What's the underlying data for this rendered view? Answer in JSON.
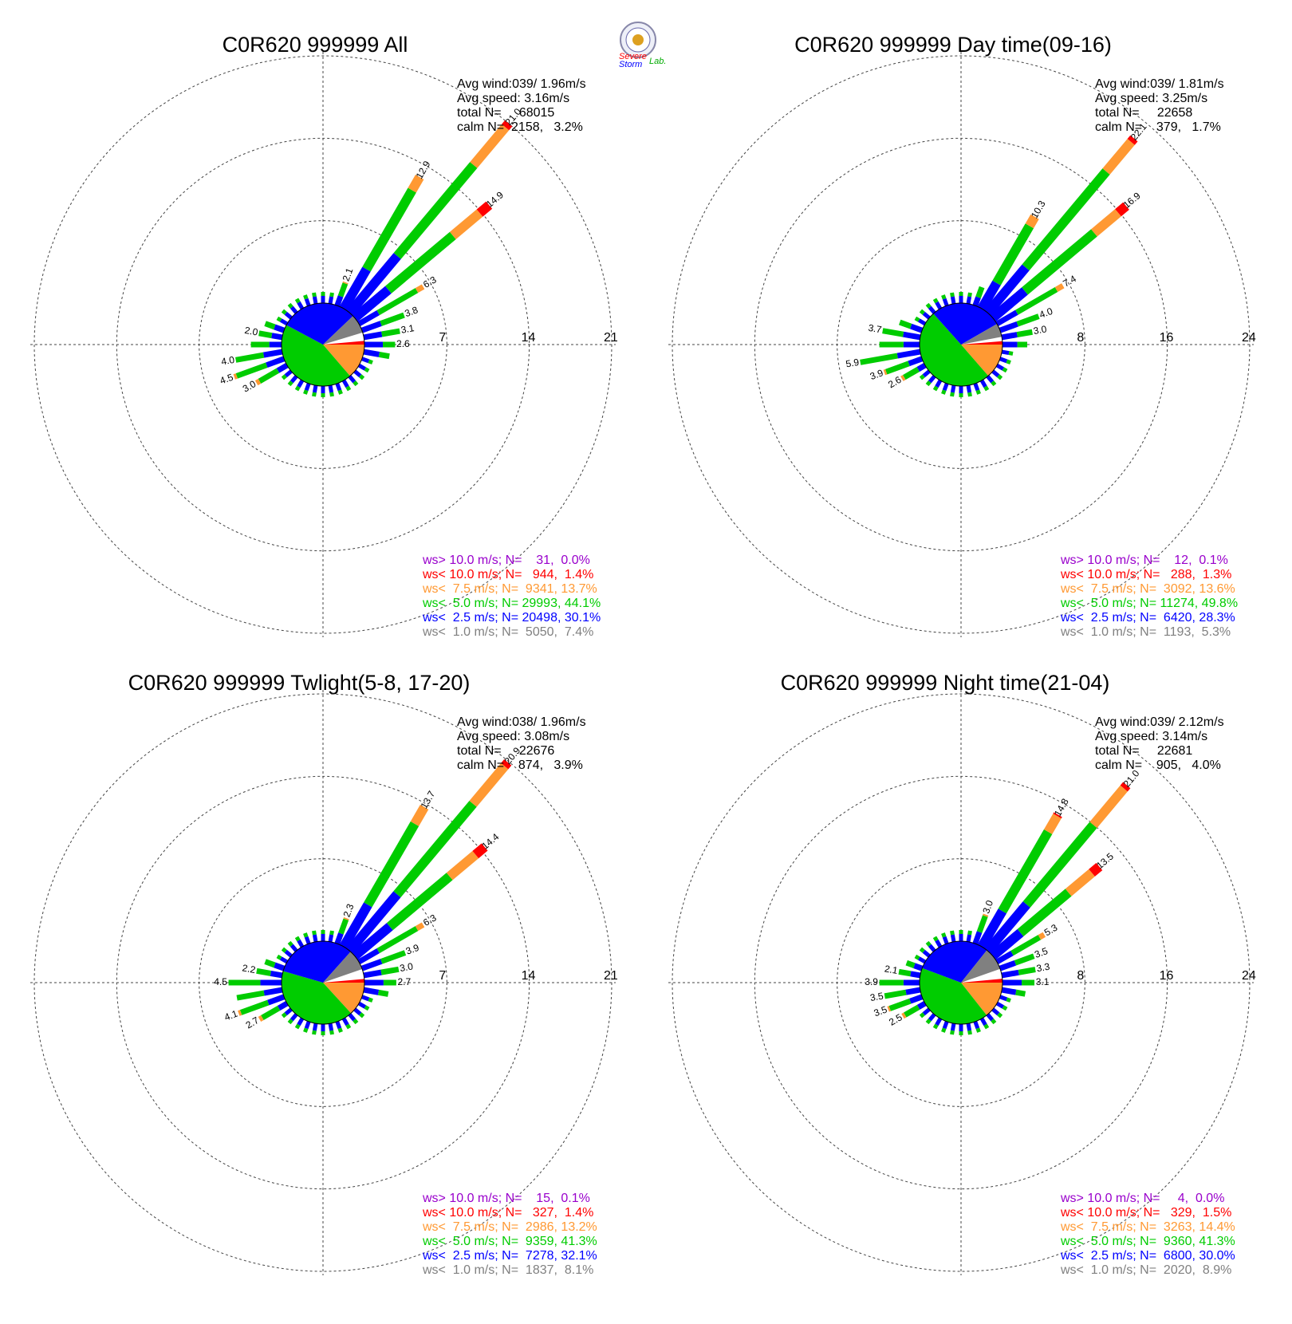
{
  "logo": {
    "lines": [
      "Severe",
      "Storm",
      "Lab."
    ]
  },
  "colors": {
    "gt10": "#9900cc",
    "lt10": "#ff0000",
    "lt75": "#ff9933",
    "lt5": "#00cc00",
    "lt25": "#0000ff",
    "lt1": "#808080"
  },
  "chart_data": [
    {
      "type": "windrose",
      "title": "C0R620 999999 All",
      "info": [
        "Avg wind:039/ 1.96m/s",
        "Avg speed: 3.16m/s",
        "total N=     68015",
        "calm N=  2158,   3.2%"
      ],
      "rings": [
        7,
        14,
        21
      ],
      "ring_labels": [
        "7",
        "14",
        "21"
      ],
      "legend": [
        "ws> 10.0 m/s; N=    31,  0.0%",
        "ws< 10.0 m/s; N=   944,  1.4%",
        "ws<  7.5 m/s; N=  9341, 13.7%",
        "ws<  5.0 m/s; N= 29993, 44.1%",
        "ws<  2.5 m/s; N= 20498, 30.1%",
        "ws<  1.0 m/s; N=  5050,  7.4%"
      ],
      "pie": [
        0.0,
        1.4,
        13.7,
        44.1,
        30.1,
        7.4
      ],
      "bar_labels": [
        {
          "dir": 20,
          "v": 2.1,
          "t": "2.1"
        },
        {
          "dir": 30,
          "v": 12.9,
          "t": "12.9"
        },
        {
          "dir": 40,
          "v": 21.0,
          "t": "21.0"
        },
        {
          "dir": 50,
          "v": 14.9,
          "t": "14.9"
        },
        {
          "dir": 60,
          "v": 6.3,
          "t": "6.3"
        },
        {
          "dir": 70,
          "v": 3.8,
          "t": "3.8"
        },
        {
          "dir": 80,
          "v": 3.1,
          "t": "3.1"
        },
        {
          "dir": 90,
          "v": 2.6,
          "t": "2.6"
        },
        {
          "dir": 240,
          "v": 3.0,
          "t": "3.0"
        },
        {
          "dir": 250,
          "v": 4.5,
          "t": "4.5"
        },
        {
          "dir": 260,
          "v": 4.0,
          "t": "4.0"
        },
        {
          "dir": 280,
          "v": 2.0,
          "t": "2.0"
        }
      ],
      "petals": [
        {
          "dir": 20,
          "v": 2.1,
          "p": [
            0,
            0,
            5,
            55,
            40
          ]
        },
        {
          "dir": 30,
          "v": 12.9,
          "p": [
            0,
            0,
            10,
            60,
            30
          ]
        },
        {
          "dir": 40,
          "v": 21.0,
          "p": [
            0,
            2,
            20,
            48,
            30
          ]
        },
        {
          "dir": 50,
          "v": 14.9,
          "p": [
            0,
            7,
            20,
            48,
            25
          ]
        },
        {
          "dir": 60,
          "v": 6.3,
          "p": [
            0,
            0,
            10,
            60,
            30
          ]
        },
        {
          "dir": 70,
          "v": 3.8,
          "p": [
            0,
            0,
            0,
            55,
            45
          ]
        },
        {
          "dir": 80,
          "v": 3.1,
          "p": [
            0,
            0,
            0,
            50,
            50
          ]
        },
        {
          "dir": 90,
          "v": 2.6,
          "p": [
            0,
            0,
            0,
            40,
            60
          ]
        },
        {
          "dir": 100,
          "v": 2.2,
          "p": [
            0,
            0,
            0,
            40,
            60
          ]
        },
        {
          "dir": 240,
          "v": 3.0,
          "p": [
            0,
            0,
            10,
            60,
            30
          ]
        },
        {
          "dir": 250,
          "v": 4.5,
          "p": [
            0,
            0,
            5,
            60,
            35
          ]
        },
        {
          "dir": 260,
          "v": 4.0,
          "p": [
            0,
            0,
            0,
            60,
            40
          ]
        },
        {
          "dir": 270,
          "v": 2.6,
          "p": [
            0,
            0,
            0,
            60,
            40
          ]
        },
        {
          "dir": 280,
          "v": 2.0,
          "p": [
            0,
            0,
            0,
            55,
            45
          ]
        },
        {
          "dir": 290,
          "v": 1.7,
          "p": [
            0,
            0,
            0,
            50,
            50
          ]
        }
      ]
    },
    {
      "type": "windrose",
      "title": "C0R620 999999 Day time(09-16)",
      "info": [
        "Avg wind:039/ 1.81m/s",
        "Avg speed: 3.25m/s",
        "total N=     22658",
        "calm N=    379,   1.7%"
      ],
      "rings": [
        8,
        16,
        24
      ],
      "ring_labels": [
        "8",
        "16",
        "24"
      ],
      "legend": [
        "ws> 10.0 m/s; N=    12,  0.1%",
        "ws< 10.0 m/s; N=   288,  1.3%",
        "ws<  7.5 m/s; N=  3092, 13.6%",
        "ws<  5.0 m/s; N= 11274, 49.8%",
        "ws<  2.5 m/s; N=  6420, 28.3%",
        "ws<  1.0 m/s; N=  1193,  5.3%"
      ],
      "pie": [
        0.1,
        1.3,
        13.6,
        49.8,
        28.3,
        5.3
      ],
      "bar_labels": [
        {
          "dir": 30,
          "v": 10.3,
          "t": "10.3"
        },
        {
          "dir": 40,
          "v": 22.1,
          "t": "22.1"
        },
        {
          "dir": 50,
          "v": 16.9,
          "t": "16.9"
        },
        {
          "dir": 60,
          "v": 7.4,
          "t": "7.4"
        },
        {
          "dir": 70,
          "v": 4.0,
          "t": "4.0"
        },
        {
          "dir": 80,
          "v": 3.0,
          "t": "3.0"
        },
        {
          "dir": 240,
          "v": 2.6,
          "t": "2.6"
        },
        {
          "dir": 250,
          "v": 3.9,
          "t": "3.9"
        },
        {
          "dir": 260,
          "v": 5.9,
          "t": "5.9"
        },
        {
          "dir": 280,
          "v": 3.7,
          "t": "3.7"
        }
      ],
      "petals": [
        {
          "dir": 20,
          "v": 1.9,
          "p": [
            0,
            0,
            0,
            55,
            45
          ]
        },
        {
          "dir": 30,
          "v": 10.3,
          "p": [
            0,
            0,
            10,
            62,
            28
          ]
        },
        {
          "dir": 40,
          "v": 22.1,
          "p": [
            0,
            2,
            17,
            55,
            26
          ]
        },
        {
          "dir": 50,
          "v": 16.9,
          "p": [
            0,
            6,
            18,
            52,
            24
          ]
        },
        {
          "dir": 60,
          "v": 7.4,
          "p": [
            0,
            0,
            10,
            60,
            30
          ]
        },
        {
          "dir": 70,
          "v": 4.0,
          "p": [
            0,
            0,
            0,
            55,
            45
          ]
        },
        {
          "dir": 80,
          "v": 3.0,
          "p": [
            0,
            0,
            0,
            50,
            50
          ]
        },
        {
          "dir": 90,
          "v": 2.4,
          "p": [
            0,
            0,
            0,
            40,
            60
          ]
        },
        {
          "dir": 240,
          "v": 2.6,
          "p": [
            0,
            0,
            10,
            60,
            30
          ]
        },
        {
          "dir": 250,
          "v": 3.9,
          "p": [
            0,
            0,
            5,
            60,
            35
          ]
        },
        {
          "dir": 260,
          "v": 5.9,
          "p": [
            0,
            0,
            0,
            62,
            38
          ]
        },
        {
          "dir": 270,
          "v": 3.9,
          "p": [
            0,
            0,
            0,
            60,
            40
          ]
        },
        {
          "dir": 280,
          "v": 3.7,
          "p": [
            0,
            0,
            0,
            55,
            45
          ]
        },
        {
          "dir": 290,
          "v": 2.3,
          "p": [
            0,
            0,
            0,
            50,
            50
          ]
        }
      ]
    },
    {
      "type": "windrose",
      "title": "C0R620 999999 Twlight(5-8, 17-20)",
      "info": [
        "Avg wind:038/ 1.96m/s",
        "Avg speed: 3.08m/s",
        "total N=     22676",
        "calm N=    874,   3.9%"
      ],
      "rings": [
        7,
        14,
        21
      ],
      "ring_labels": [
        "7",
        "14",
        "21"
      ],
      "legend": [
        "ws> 10.0 m/s; N=    15,  0.1%",
        "ws< 10.0 m/s; N=   327,  1.4%",
        "ws<  7.5 m/s; N=  2986, 13.2%",
        "ws<  5.0 m/s; N=  9359, 41.3%",
        "ws<  2.5 m/s; N=  7278, 32.1%",
        "ws<  1.0 m/s; N=  1837,  8.1%"
      ],
      "pie": [
        0.1,
        1.4,
        13.2,
        41.3,
        32.1,
        8.1
      ],
      "bar_labels": [
        {
          "dir": 20,
          "v": 2.3,
          "t": "2.3"
        },
        {
          "dir": 30,
          "v": 13.7,
          "t": "13.7"
        },
        {
          "dir": 40,
          "v": 20.9,
          "t": "20.9"
        },
        {
          "dir": 50,
          "v": 14.4,
          "t": "14.4"
        },
        {
          "dir": 60,
          "v": 6.3,
          "t": "6.3"
        },
        {
          "dir": 70,
          "v": 3.9,
          "t": "3.9"
        },
        {
          "dir": 80,
          "v": 3.0,
          "t": "3.0"
        },
        {
          "dir": 90,
          "v": 2.7,
          "t": "2.7"
        },
        {
          "dir": 240,
          "v": 2.7,
          "t": "2.7"
        },
        {
          "dir": 250,
          "v": 4.1,
          "t": "4.1"
        },
        {
          "dir": 270,
          "v": 4.5,
          "t": "4.5"
        },
        {
          "dir": 280,
          "v": 2.2,
          "t": "2.2"
        }
      ],
      "petals": [
        {
          "dir": 20,
          "v": 2.3,
          "p": [
            0,
            0,
            5,
            55,
            40
          ]
        },
        {
          "dir": 30,
          "v": 13.7,
          "p": [
            0,
            0,
            12,
            58,
            30
          ]
        },
        {
          "dir": 40,
          "v": 20.9,
          "p": [
            0,
            2,
            20,
            48,
            30
          ]
        },
        {
          "dir": 50,
          "v": 14.4,
          "p": [
            0,
            7,
            20,
            46,
            27
          ]
        },
        {
          "dir": 60,
          "v": 6.3,
          "p": [
            0,
            0,
            10,
            60,
            30
          ]
        },
        {
          "dir": 70,
          "v": 3.9,
          "p": [
            0,
            0,
            0,
            55,
            45
          ]
        },
        {
          "dir": 80,
          "v": 3.0,
          "p": [
            0,
            0,
            0,
            50,
            50
          ]
        },
        {
          "dir": 90,
          "v": 2.7,
          "p": [
            0,
            0,
            0,
            40,
            60
          ]
        },
        {
          "dir": 100,
          "v": 2.1,
          "p": [
            0,
            0,
            0,
            40,
            60
          ]
        },
        {
          "dir": 240,
          "v": 2.7,
          "p": [
            0,
            0,
            10,
            60,
            30
          ]
        },
        {
          "dir": 250,
          "v": 4.1,
          "p": [
            0,
            0,
            5,
            60,
            35
          ]
        },
        {
          "dir": 260,
          "v": 3.9,
          "p": [
            0,
            0,
            0,
            60,
            40
          ]
        },
        {
          "dir": 270,
          "v": 4.5,
          "p": [
            0,
            0,
            0,
            60,
            40
          ]
        },
        {
          "dir": 280,
          "v": 2.2,
          "p": [
            0,
            0,
            0,
            55,
            45
          ]
        },
        {
          "dir": 290,
          "v": 1.7,
          "p": [
            0,
            0,
            0,
            50,
            50
          ]
        }
      ]
    },
    {
      "type": "windrose",
      "title": "C0R620 999999 Night time(21-04)",
      "info": [
        "Avg wind:039/ 2.12m/s",
        "Avg speed: 3.14m/s",
        "total N=     22681",
        "calm N=    905,   4.0%"
      ],
      "rings": [
        8,
        16,
        24
      ],
      "ring_labels": [
        "8",
        "16",
        "24"
      ],
      "legend": [
        "ws> 10.0 m/s; N=     4,  0.0%",
        "ws< 10.0 m/s; N=   329,  1.5%",
        "ws<  7.5 m/s; N=  3263, 14.4%",
        "ws<  5.0 m/s; N=  9360, 41.3%",
        "ws<  2.5 m/s; N=  6800, 30.0%",
        "ws<  1.0 m/s; N=  2020,  8.9%"
      ],
      "pie": [
        0.0,
        1.5,
        14.4,
        41.3,
        30.0,
        8.9
      ],
      "bar_labels": [
        {
          "dir": 20,
          "v": 3.0,
          "t": "3.0"
        },
        {
          "dir": 30,
          "v": 14.8,
          "t": "14.8"
        },
        {
          "dir": 40,
          "v": 21.0,
          "t": "21.0"
        },
        {
          "dir": 50,
          "v": 13.5,
          "t": "13.5"
        },
        {
          "dir": 60,
          "v": 5.3,
          "t": "5.3"
        },
        {
          "dir": 70,
          "v": 3.5,
          "t": "3.5"
        },
        {
          "dir": 80,
          "v": 3.3,
          "t": "3.3"
        },
        {
          "dir": 90,
          "v": 3.1,
          "t": "3.1"
        },
        {
          "dir": 240,
          "v": 2.5,
          "t": "2.5"
        },
        {
          "dir": 250,
          "v": 3.5,
          "t": "3.5"
        },
        {
          "dir": 260,
          "v": 3.5,
          "t": "3.5"
        },
        {
          "dir": 270,
          "v": 3.9,
          "t": "3.9"
        },
        {
          "dir": 280,
          "v": 2.1,
          "t": "2.1"
        }
      ],
      "petals": [
        {
          "dir": 20,
          "v": 3.0,
          "p": [
            0,
            0,
            5,
            55,
            40
          ]
        },
        {
          "dir": 30,
          "v": 14.8,
          "p": [
            0,
            1,
            12,
            60,
            27
          ]
        },
        {
          "dir": 40,
          "v": 21.0,
          "p": [
            0,
            2,
            22,
            48,
            28
          ]
        },
        {
          "dir": 50,
          "v": 13.5,
          "p": [
            0,
            7,
            22,
            45,
            26
          ]
        },
        {
          "dir": 60,
          "v": 5.3,
          "p": [
            0,
            0,
            10,
            58,
            32
          ]
        },
        {
          "dir": 70,
          "v": 3.5,
          "p": [
            0,
            0,
            0,
            55,
            45
          ]
        },
        {
          "dir": 80,
          "v": 3.3,
          "p": [
            0,
            0,
            0,
            50,
            50
          ]
        },
        {
          "dir": 90,
          "v": 3.1,
          "p": [
            0,
            0,
            0,
            40,
            60
          ]
        },
        {
          "dir": 100,
          "v": 2.3,
          "p": [
            0,
            0,
            0,
            40,
            60
          ]
        },
        {
          "dir": 240,
          "v": 2.5,
          "p": [
            0,
            0,
            10,
            60,
            30
          ]
        },
        {
          "dir": 250,
          "v": 3.5,
          "p": [
            0,
            0,
            5,
            60,
            35
          ]
        },
        {
          "dir": 260,
          "v": 3.5,
          "p": [
            0,
            0,
            0,
            60,
            40
          ]
        },
        {
          "dir": 270,
          "v": 3.9,
          "p": [
            0,
            0,
            0,
            60,
            40
          ]
        },
        {
          "dir": 280,
          "v": 2.1,
          "p": [
            0,
            0,
            0,
            55,
            45
          ]
        },
        {
          "dir": 290,
          "v": 1.6,
          "p": [
            0,
            0,
            0,
            50,
            50
          ]
        }
      ]
    }
  ]
}
